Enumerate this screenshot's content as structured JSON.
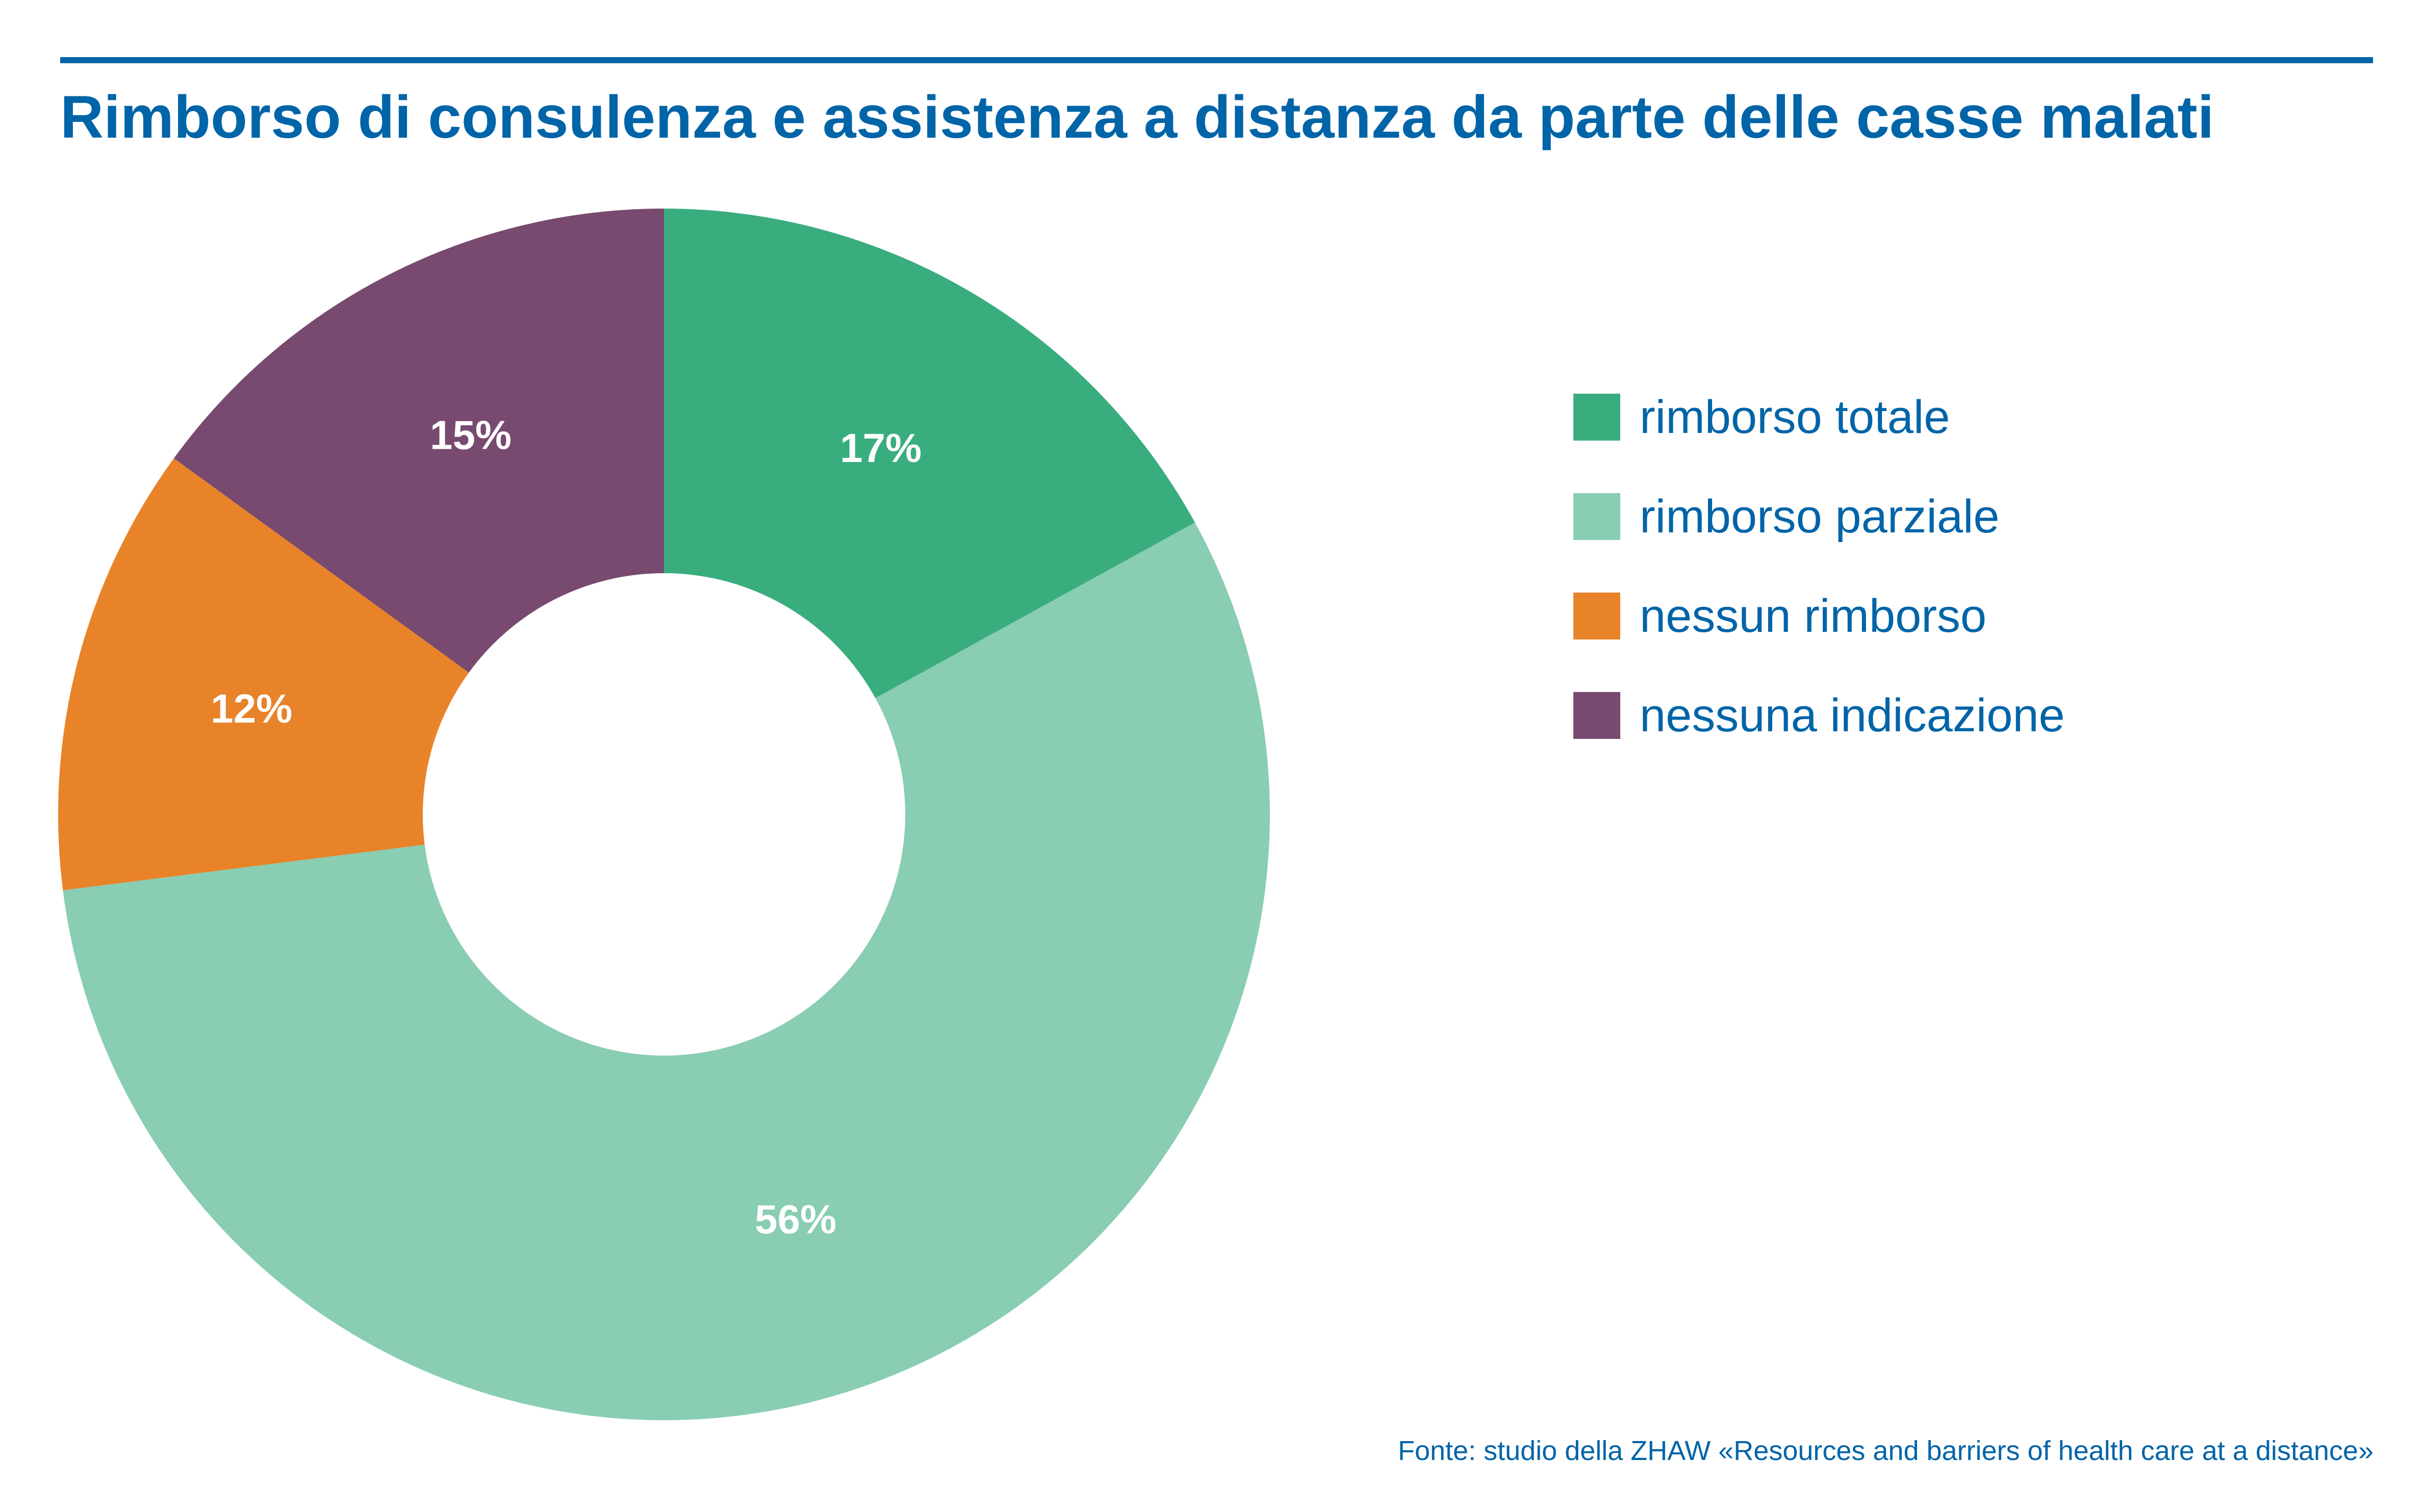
{
  "chart_data": {
    "type": "pie",
    "title": "Rimborso di consulenza e assistenza a distanza da parte delle casse malati",
    "categories": [
      "rimborso totale",
      "rimborso parziale",
      "nessun rimborso",
      "nessuna indicazione"
    ],
    "values": [
      17,
      56,
      12,
      15
    ],
    "value_labels": [
      "17%",
      "56%",
      "12%",
      "15%"
    ],
    "colors": [
      "#3aad7f",
      "#89cdb2",
      "#e88329",
      "#784a6f"
    ],
    "donut": true,
    "start": "12 o'clock",
    "direction": "clockwise",
    "legend_position": "right",
    "source": "Fonte: studio della ZHAW «Resources and barriers of health care at a distance»"
  }
}
